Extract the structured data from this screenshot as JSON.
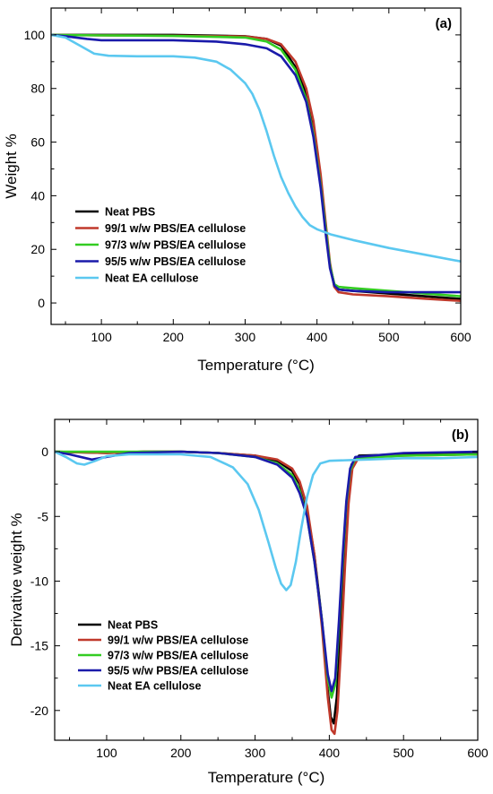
{
  "chart_data": [
    {
      "type": "line",
      "panel_label": "(a)",
      "xlabel": "Temperature (°C)",
      "ylabel": "Weight %",
      "xlim": [
        30,
        600
      ],
      "ylim": [
        -8,
        110
      ],
      "xticks": [
        100,
        200,
        300,
        400,
        500,
        600
      ],
      "yticks": [
        0,
        20,
        40,
        60,
        80,
        100
      ],
      "legend_position": "bottom-left",
      "series": [
        {
          "name": "Neat PBS",
          "color": "#000000",
          "points": [
            [
              30,
              100
            ],
            [
              100,
              100
            ],
            [
              200,
              100
            ],
            [
              300,
              99.5
            ],
            [
              330,
              98.5
            ],
            [
              350,
              96
            ],
            [
              370,
              88
            ],
            [
              385,
              78
            ],
            [
              395,
              65
            ],
            [
              405,
              45
            ],
            [
              412,
              28
            ],
            [
              418,
              14
            ],
            [
              424,
              7
            ],
            [
              430,
              5
            ],
            [
              450,
              4.5
            ],
            [
              500,
              3.5
            ],
            [
              550,
              2.5
            ],
            [
              600,
              1.5
            ]
          ]
        },
        {
          "name": "99/1 w/w PBS/EA cellulose",
          "color": "#c0392b",
          "points": [
            [
              30,
              100
            ],
            [
              100,
              99.8
            ],
            [
              200,
              99.7
            ],
            [
              300,
              99.4
            ],
            [
              330,
              98.5
            ],
            [
              350,
              96.5
            ],
            [
              370,
              90
            ],
            [
              385,
              80
            ],
            [
              395,
              68
            ],
            [
              405,
              48
            ],
            [
              412,
              30
            ],
            [
              418,
              15
            ],
            [
              424,
              6
            ],
            [
              430,
              4
            ],
            [
              450,
              3.2
            ],
            [
              500,
              2.5
            ],
            [
              550,
              1.6
            ],
            [
              600,
              0.8
            ]
          ]
        },
        {
          "name": "97/3 w/w PBS/EA cellulose",
          "color": "#33cc22",
          "points": [
            [
              30,
              100
            ],
            [
              100,
              99.8
            ],
            [
              200,
              99.6
            ],
            [
              300,
              99
            ],
            [
              330,
              97.5
            ],
            [
              350,
              94.5
            ],
            [
              370,
              87
            ],
            [
              385,
              76
            ],
            [
              395,
              63
            ],
            [
              405,
              44
            ],
            [
              412,
              28
            ],
            [
              418,
              14
            ],
            [
              424,
              7
            ],
            [
              430,
              6
            ],
            [
              450,
              5.5
            ],
            [
              500,
              4.5
            ],
            [
              550,
              3.5
            ],
            [
              600,
              2.5
            ]
          ]
        },
        {
          "name": "95/5 w/w PBS/EA cellulose",
          "color": "#1a1aaa",
          "points": [
            [
              30,
              100
            ],
            [
              50,
              99.5
            ],
            [
              80,
              98.5
            ],
            [
              100,
              98
            ],
            [
              200,
              98
            ],
            [
              260,
              97.5
            ],
            [
              300,
              96.5
            ],
            [
              330,
              95
            ],
            [
              350,
              92
            ],
            [
              370,
              85
            ],
            [
              385,
              75
            ],
            [
              395,
              62
            ],
            [
              405,
              43
            ],
            [
              412,
              26
            ],
            [
              418,
              13
            ],
            [
              424,
              6.5
            ],
            [
              430,
              5
            ],
            [
              450,
              4.5
            ],
            [
              500,
              4
            ],
            [
              550,
              4
            ],
            [
              600,
              4
            ]
          ]
        },
        {
          "name": "Neat EA cellulose",
          "color": "#5bc8f0",
          "points": [
            [
              30,
              100
            ],
            [
              50,
              99
            ],
            [
              70,
              96
            ],
            [
              90,
              93
            ],
            [
              110,
              92.2
            ],
            [
              150,
              92
            ],
            [
              200,
              92
            ],
            [
              230,
              91.5
            ],
            [
              260,
              90
            ],
            [
              280,
              87
            ],
            [
              300,
              82
            ],
            [
              310,
              78
            ],
            [
              320,
              72
            ],
            [
              330,
              64
            ],
            [
              340,
              55
            ],
            [
              350,
              47
            ],
            [
              360,
              41
            ],
            [
              370,
              36
            ],
            [
              380,
              32
            ],
            [
              390,
              29
            ],
            [
              400,
              27.5
            ],
            [
              420,
              25.5
            ],
            [
              450,
              23.5
            ],
            [
              500,
              20.5
            ],
            [
              550,
              18
            ],
            [
              600,
              15.5
            ]
          ]
        }
      ]
    },
    {
      "type": "line",
      "panel_label": "(b)",
      "xlabel": "Temperature (°C)",
      "ylabel": "Derivative weight %",
      "xlim": [
        30,
        600
      ],
      "ylim": [
        -22.3,
        2.5
      ],
      "xticks": [
        100,
        200,
        300,
        400,
        500,
        600
      ],
      "yticks": [
        0,
        -5,
        -10,
        -15,
        -20
      ],
      "legend_position": "bottom-left",
      "series": [
        {
          "name": "Neat PBS",
          "color": "#000000",
          "points": [
            [
              30,
              0
            ],
            [
              100,
              -0.1
            ],
            [
              150,
              0
            ],
            [
              200,
              0
            ],
            [
              250,
              -0.1
            ],
            [
              300,
              -0.3
            ],
            [
              330,
              -0.7
            ],
            [
              350,
              -1.5
            ],
            [
              360,
              -2.5
            ],
            [
              370,
              -4.5
            ],
            [
              380,
              -8
            ],
            [
              390,
              -13
            ],
            [
              397,
              -18
            ],
            [
              402,
              -20.5
            ],
            [
              406,
              -21
            ],
            [
              410,
              -19
            ],
            [
              415,
              -14
            ],
            [
              420,
              -8
            ],
            [
              425,
              -3
            ],
            [
              430,
              -1
            ],
            [
              440,
              -0.3
            ],
            [
              500,
              -0.2
            ],
            [
              600,
              -0.1
            ]
          ]
        },
        {
          "name": "99/1 w/w PBS/EA cellulose",
          "color": "#c0392b",
          "points": [
            [
              30,
              0
            ],
            [
              100,
              -0.1
            ],
            [
              150,
              0
            ],
            [
              200,
              0
            ],
            [
              250,
              -0.1
            ],
            [
              300,
              -0.3
            ],
            [
              330,
              -0.6
            ],
            [
              350,
              -1.3
            ],
            [
              360,
              -2.3
            ],
            [
              370,
              -4.2
            ],
            [
              380,
              -8
            ],
            [
              390,
              -13.5
            ],
            [
              398,
              -19
            ],
            [
              403,
              -21.5
            ],
            [
              407,
              -21.8
            ],
            [
              411,
              -20
            ],
            [
              416,
              -15
            ],
            [
              421,
              -9
            ],
            [
              426,
              -4
            ],
            [
              431,
              -1.3
            ],
            [
              440,
              -0.4
            ],
            [
              500,
              -0.3
            ],
            [
              600,
              -0.2
            ]
          ]
        },
        {
          "name": "97/3 w/w PBS/EA cellulose",
          "color": "#33cc22",
          "points": [
            [
              30,
              0
            ],
            [
              100,
              0
            ],
            [
              150,
              0
            ],
            [
              200,
              0
            ],
            [
              250,
              -0.1
            ],
            [
              300,
              -0.4
            ],
            [
              330,
              -0.9
            ],
            [
              350,
              -1.8
            ],
            [
              360,
              -3
            ],
            [
              370,
              -5
            ],
            [
              380,
              -8.5
            ],
            [
              390,
              -13
            ],
            [
              398,
              -17.5
            ],
            [
              403,
              -19
            ],
            [
              408,
              -18
            ],
            [
              413,
              -13.5
            ],
            [
              418,
              -8.5
            ],
            [
              423,
              -4
            ],
            [
              428,
              -1.5
            ],
            [
              435,
              -0.5
            ],
            [
              500,
              -0.3
            ],
            [
              600,
              -0.2
            ]
          ]
        },
        {
          "name": "95/5 w/w PBS/EA cellulose",
          "color": "#1a1aaa",
          "points": [
            [
              30,
              0
            ],
            [
              50,
              -0.2
            ],
            [
              80,
              -0.6
            ],
            [
              100,
              -0.4
            ],
            [
              130,
              -0.1
            ],
            [
              200,
              0
            ],
            [
              250,
              -0.1
            ],
            [
              300,
              -0.4
            ],
            [
              330,
              -1
            ],
            [
              350,
              -2
            ],
            [
              360,
              -3.2
            ],
            [
              370,
              -5
            ],
            [
              380,
              -8.5
            ],
            [
              390,
              -13
            ],
            [
              398,
              -17.2
            ],
            [
              403,
              -18.5
            ],
            [
              408,
              -17.5
            ],
            [
              413,
              -13
            ],
            [
              418,
              -8
            ],
            [
              423,
              -3.8
            ],
            [
              428,
              -1.3
            ],
            [
              435,
              -0.4
            ],
            [
              500,
              -0.1
            ],
            [
              600,
              0
            ]
          ]
        },
        {
          "name": "Neat EA cellulose",
          "color": "#5bc8f0",
          "points": [
            [
              30,
              0
            ],
            [
              45,
              -0.4
            ],
            [
              60,
              -0.9
            ],
            [
              70,
              -1
            ],
            [
              85,
              -0.7
            ],
            [
              100,
              -0.35
            ],
            [
              130,
              -0.2
            ],
            [
              200,
              -0.2
            ],
            [
              240,
              -0.4
            ],
            [
              270,
              -1.2
            ],
            [
              290,
              -2.5
            ],
            [
              305,
              -4.5
            ],
            [
              318,
              -7
            ],
            [
              328,
              -9
            ],
            [
              335,
              -10.2
            ],
            [
              342,
              -10.7
            ],
            [
              348,
              -10.3
            ],
            [
              355,
              -8.5
            ],
            [
              362,
              -6
            ],
            [
              370,
              -3.5
            ],
            [
              378,
              -1.8
            ],
            [
              388,
              -0.9
            ],
            [
              400,
              -0.7
            ],
            [
              450,
              -0.6
            ],
            [
              500,
              -0.5
            ],
            [
              550,
              -0.5
            ],
            [
              600,
              -0.4
            ]
          ]
        }
      ]
    }
  ]
}
